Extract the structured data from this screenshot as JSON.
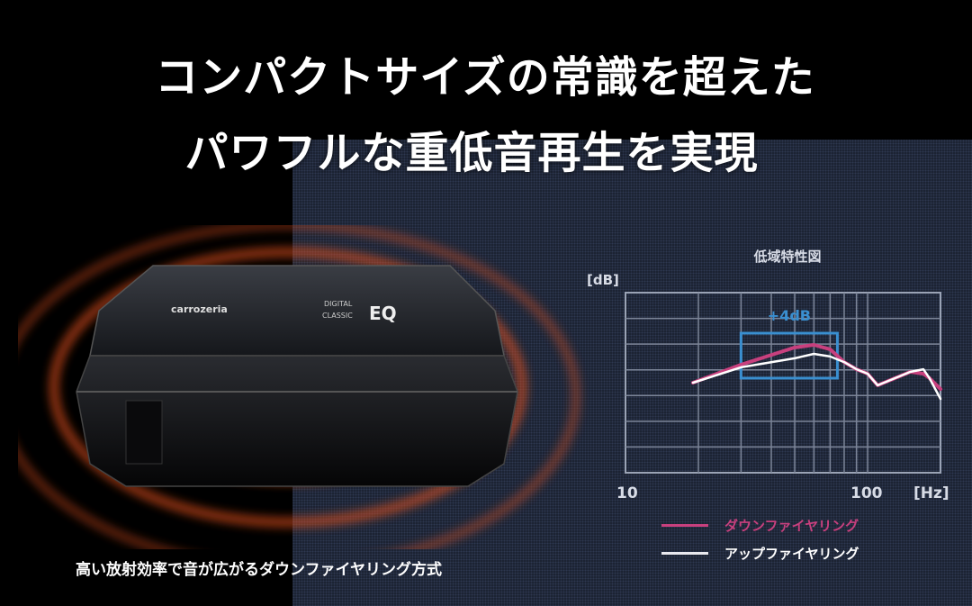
{
  "headline": {
    "line1": "コンパクトサイズの常識を超えた",
    "line2": "パワフルな重低音再生を実現"
  },
  "product": {
    "brand": "carrozeria",
    "badge_top": "DIGITAL",
    "badge_mid": "CLASSIC",
    "badge_eq": "EQ"
  },
  "caption": "高い放射効率で音が広がるダウンファイヤリング方式",
  "colors": {
    "background": "#000000",
    "panel": "#1b2232",
    "down_firing": "#c8407e",
    "up_firing": "#ffffff",
    "highlight_box": "#3a8fd0",
    "rings": "#e0501e"
  },
  "chart_data": {
    "type": "line",
    "title": "低域特性図",
    "ylabel": "[dB]",
    "xlabel": "[Hz]",
    "x_scale": "log",
    "xlim": [
      10,
      200
    ],
    "ylim": [
      0,
      70
    ],
    "x_tick_labels": [
      "10",
      "100"
    ],
    "grid": true,
    "legend_placement": "bottom",
    "annotation": {
      "text": "+4dB",
      "x_range": [
        30,
        75
      ]
    },
    "series": [
      {
        "name": "ダウンファイヤリング",
        "color": "#c8407e",
        "x": [
          19,
          30,
          50,
          60,
          70,
          80,
          90,
          100,
          110,
          130,
          150,
          170,
          180,
          200
        ],
        "y": [
          35,
          42,
          48.7,
          49.7,
          48,
          43,
          40.2,
          38.5,
          34,
          36.8,
          39.2,
          38.5,
          36.8,
          32.5
        ]
      },
      {
        "name": "アップファイヤリング",
        "color": "#ffffff",
        "x": [
          19,
          30,
          50,
          60,
          70,
          80,
          90,
          100,
          110,
          130,
          150,
          170,
          180,
          200
        ],
        "y": [
          35,
          41,
          44.5,
          46.2,
          45.2,
          43,
          40.2,
          38.5,
          34,
          36.8,
          39.2,
          40.2,
          36.8,
          28.7
        ]
      }
    ]
  }
}
